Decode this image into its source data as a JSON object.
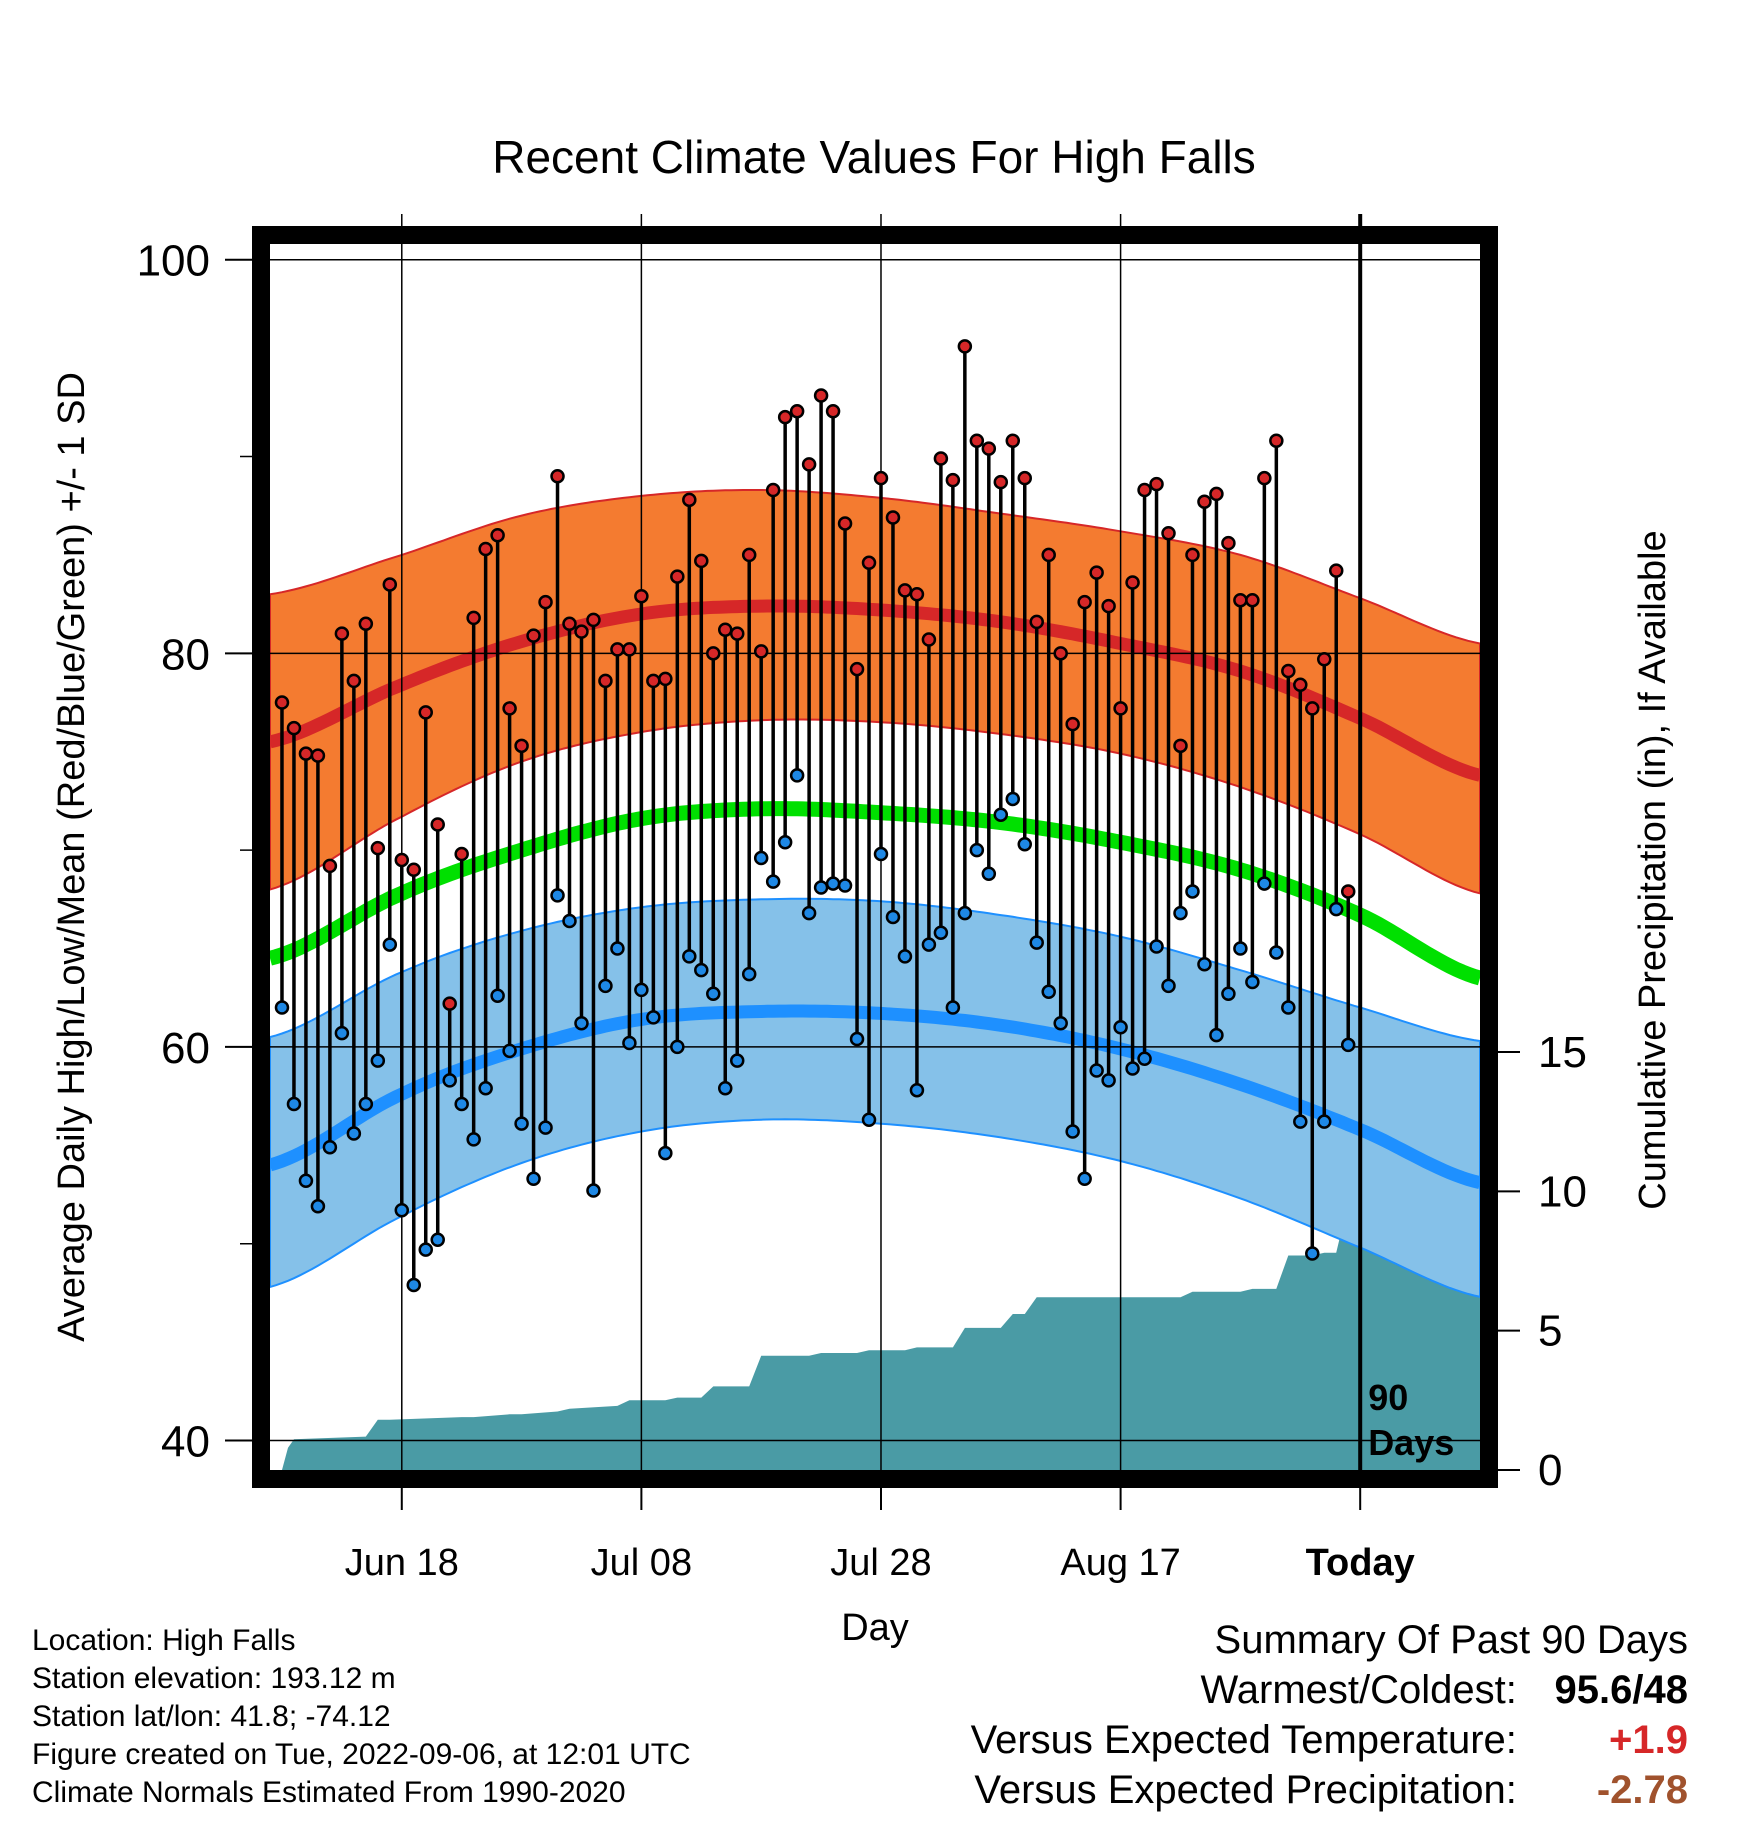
{
  "title": "Recent Climate Values For High Falls",
  "left_axis_label": "Average Daily High/Low/Mean (Red/Blue/Green) +/- 1 SD",
  "right_axis_label": "Cumulative Precipitation (in), If Available",
  "x_axis_label": "Day",
  "ninety_days_label": [
    "90",
    "Days"
  ],
  "meta": {
    "location": "Location: High Falls",
    "elevation": "Station elevation: 193.12 m",
    "latlon": "Station lat/lon: 41.8; -74.12",
    "created": "Figure created on Tue, 2022-09-06, at 12:01 UTC",
    "normals": "Climate Normals Estimated From 1990-2020"
  },
  "summary": {
    "heading": "Summary Of Past 90 Days",
    "warmest_label": "Warmest/Coldest:",
    "warmest_value": "95.6/48",
    "temp_label": "Versus Expected Temperature:",
    "temp_value": "+1.9",
    "precip_label": "Versus Expected Precipitation:",
    "precip_value": "-2.78"
  },
  "colors": {
    "high_band": "#f47b30",
    "high_mean": "#d62728",
    "low_band": "#85c1e9",
    "low_mean": "#1e90ff",
    "mean_line": "#00e000",
    "precip": "#4a9ba5",
    "high_marker": "#d62728",
    "low_marker": "#1e88e5"
  },
  "chart_data": {
    "type": "line",
    "x_tick_labels": [
      "Jun 18",
      "Jul 08",
      "Jul 28",
      "Aug 17",
      "Today"
    ],
    "x_tick_days": [
      10,
      30,
      50,
      70,
      90
    ],
    "left_ticks": [
      40,
      60,
      80,
      100
    ],
    "right_ticks": [
      0,
      5,
      10,
      15
    ],
    "left_ylim": [
      38.5,
      100.8
    ],
    "right_ylim": [
      0,
      44
    ],
    "xlim": [
      -1,
      100
    ],
    "normals": {
      "days": [
        -1,
        10,
        20,
        30,
        40,
        50,
        60,
        70,
        80,
        90,
        100
      ],
      "high_upper": [
        83.0,
        85.0,
        87.0,
        88.0,
        88.3,
        87.9,
        87.1,
        86.2,
        85.0,
        82.8,
        80.5
      ],
      "high_mean": [
        75.5,
        78.4,
        80.6,
        82.0,
        82.4,
        82.2,
        81.6,
        80.5,
        79.1,
        76.7,
        73.8
      ],
      "high_lower": [
        68.0,
        71.7,
        74.5,
        76.0,
        76.6,
        76.5,
        75.9,
        74.9,
        73.2,
        70.8,
        67.8
      ],
      "mean": [
        64.5,
        67.8,
        70.0,
        71.6,
        72.1,
        71.9,
        71.4,
        70.4,
        69.0,
        66.7,
        63.5
      ],
      "low_upper": [
        60.5,
        63.8,
        65.9,
        67.1,
        67.5,
        67.4,
        66.7,
        65.6,
        63.9,
        62.0,
        60.3
      ],
      "low_mean": [
        54.0,
        57.6,
        59.9,
        61.4,
        61.8,
        61.7,
        61.1,
        59.9,
        58.1,
        55.8,
        53.1
      ],
      "low_lower": [
        47.8,
        51.4,
        54.1,
        55.7,
        56.3,
        56.1,
        55.4,
        54.2,
        52.3,
        49.8,
        47.3
      ]
    },
    "daily": [
      {
        "day": 0,
        "high": 77.5,
        "low": 62.0
      },
      {
        "day": 1,
        "high": 76.2,
        "low": 57.1
      },
      {
        "day": 2,
        "high": 74.9,
        "low": 53.2
      },
      {
        "day": 3,
        "high": 74.8,
        "low": 51.9
      },
      {
        "day": 4,
        "high": 69.2,
        "low": 54.9
      },
      {
        "day": 5,
        "high": 81.0,
        "low": 60.7
      },
      {
        "day": 6,
        "high": 78.6,
        "low": 55.6
      },
      {
        "day": 7,
        "high": 81.5,
        "low": 57.1
      },
      {
        "day": 8,
        "high": 70.1,
        "low": 59.3
      },
      {
        "day": 9,
        "high": 83.5,
        "low": 65.2
      },
      {
        "day": 10,
        "high": 69.5,
        "low": 51.7
      },
      {
        "day": 11,
        "high": 69.0,
        "low": 47.9
      },
      {
        "day": 12,
        "high": 77.0,
        "low": 49.7
      },
      {
        "day": 13,
        "high": 71.3,
        "low": 50.2
      },
      {
        "day": 14,
        "high": 62.2,
        "low": 58.3
      },
      {
        "day": 15,
        "high": 69.8,
        "low": 57.1
      },
      {
        "day": 16,
        "high": 81.8,
        "low": 55.3
      },
      {
        "day": 17,
        "high": 85.3,
        "low": 57.9
      },
      {
        "day": 18,
        "high": 86.0,
        "low": 62.6
      },
      {
        "day": 19,
        "high": 77.2,
        "low": 59.8
      },
      {
        "day": 20,
        "high": 75.3,
        "low": 56.1
      },
      {
        "day": 21,
        "high": 80.9,
        "low": 53.3
      },
      {
        "day": 22,
        "high": 82.6,
        "low": 55.9
      },
      {
        "day": 23,
        "high": 89.0,
        "low": 67.7
      },
      {
        "day": 24,
        "high": 81.5,
        "low": 66.4
      },
      {
        "day": 25,
        "high": 81.1,
        "low": 61.2
      },
      {
        "day": 26,
        "high": 81.7,
        "low": 52.7
      },
      {
        "day": 27,
        "high": 78.6,
        "low": 63.1
      },
      {
        "day": 28,
        "high": 80.2,
        "low": 65.0
      },
      {
        "day": 29,
        "high": 80.2,
        "low": 60.2
      },
      {
        "day": 30,
        "high": 82.9,
        "low": 62.9
      },
      {
        "day": 31,
        "high": 78.6,
        "low": 61.5
      },
      {
        "day": 32,
        "high": 78.7,
        "low": 54.6
      },
      {
        "day": 33,
        "high": 83.9,
        "low": 60.0
      },
      {
        "day": 34,
        "high": 87.8,
        "low": 64.6
      },
      {
        "day": 35,
        "high": 84.7,
        "low": 63.9
      },
      {
        "day": 36,
        "high": 80.0,
        "low": 62.7
      },
      {
        "day": 37,
        "high": 81.2,
        "low": 57.9
      },
      {
        "day": 38,
        "high": 81.0,
        "low": 59.3
      },
      {
        "day": 39,
        "high": 85.0,
        "low": 63.7
      },
      {
        "day": 40,
        "high": 80.1,
        "low": 69.6
      },
      {
        "day": 41,
        "high": 88.3,
        "low": 68.4
      },
      {
        "day": 42,
        "high": 92.0,
        "low": 70.4
      },
      {
        "day": 43,
        "high": 92.3,
        "low": 73.8
      },
      {
        "day": 44,
        "high": 89.6,
        "low": 66.8
      },
      {
        "day": 45,
        "high": 93.1,
        "low": 68.1
      },
      {
        "day": 46,
        "high": 92.3,
        "low": 68.3
      },
      {
        "day": 47,
        "high": 86.6,
        "low": 68.2
      },
      {
        "day": 48,
        "high": 79.2,
        "low": 60.4
      },
      {
        "day": 49,
        "high": 84.6,
        "low": 56.3
      },
      {
        "day": 50,
        "high": 88.9,
        "low": 69.8
      },
      {
        "day": 51,
        "high": 86.9,
        "low": 66.6
      },
      {
        "day": 52,
        "high": 83.2,
        "low": 64.6
      },
      {
        "day": 53,
        "high": 83.0,
        "low": 57.8
      },
      {
        "day": 54,
        "high": 80.7,
        "low": 65.2
      },
      {
        "day": 55,
        "high": 89.9,
        "low": 65.8
      },
      {
        "day": 56,
        "high": 88.8,
        "low": 62.0
      },
      {
        "day": 57,
        "high": 95.6,
        "low": 66.8
      },
      {
        "day": 58,
        "high": 90.8,
        "low": 70.0
      },
      {
        "day": 59,
        "high": 90.4,
        "low": 68.8
      },
      {
        "day": 60,
        "high": 88.7,
        "low": 71.8
      },
      {
        "day": 61,
        "high": 90.8,
        "low": 72.6
      },
      {
        "day": 62,
        "high": 88.9,
        "low": 70.3
      },
      {
        "day": 63,
        "high": 81.6,
        "low": 65.3
      },
      {
        "day": 64,
        "high": 85.0,
        "low": 62.8
      },
      {
        "day": 65,
        "high": 80.0,
        "low": 61.2
      },
      {
        "day": 66,
        "high": 76.4,
        "low": 55.7
      },
      {
        "day": 67,
        "high": 82.6,
        "low": 53.3
      },
      {
        "day": 68,
        "high": 84.1,
        "low": 58.8
      },
      {
        "day": 69,
        "high": 82.4,
        "low": 58.3
      },
      {
        "day": 70,
        "high": 77.2,
        "low": 61.0
      },
      {
        "day": 71,
        "high": 83.6,
        "low": 58.9
      },
      {
        "day": 72,
        "high": 88.3,
        "low": 59.4
      },
      {
        "day": 73,
        "high": 88.6,
        "low": 65.1
      },
      {
        "day": 74,
        "high": 86.1,
        "low": 63.1
      },
      {
        "day": 75,
        "high": 75.3,
        "low": 66.8
      },
      {
        "day": 76,
        "high": 85.0,
        "low": 67.9
      },
      {
        "day": 77,
        "high": 87.7,
        "low": 64.2
      },
      {
        "day": 78,
        "high": 88.1,
        "low": 60.6
      },
      {
        "day": 79,
        "high": 85.6,
        "low": 62.7
      },
      {
        "day": 80,
        "high": 82.7,
        "low": 65.0
      },
      {
        "day": 81,
        "high": 82.7,
        "low": 63.3
      },
      {
        "day": 82,
        "high": 88.9,
        "low": 68.3
      },
      {
        "day": 83,
        "high": 90.8,
        "low": 64.8
      },
      {
        "day": 84,
        "high": 79.1,
        "low": 62.0
      },
      {
        "day": 85,
        "high": 78.4,
        "low": 56.2
      },
      {
        "day": 86,
        "high": 77.2,
        "low": 49.5
      },
      {
        "day": 87,
        "high": 79.7,
        "low": 56.2
      },
      {
        "day": 88,
        "high": 84.2,
        "low": 67.0
      },
      {
        "day": 89,
        "high": 67.9,
        "low": 60.1
      }
    ],
    "precip": {
      "days": [
        0,
        0.5,
        1,
        7,
        8,
        9,
        15,
        16,
        19,
        20,
        23,
        24,
        28,
        29,
        32,
        33,
        35,
        36,
        39,
        40,
        44,
        45,
        48,
        49,
        52,
        53,
        56,
        57,
        60,
        61,
        62,
        63,
        70,
        71,
        75,
        76,
        80,
        81,
        83,
        84,
        86,
        87,
        88,
        89,
        100
      ],
      "values": [
        0,
        0.8,
        1.1,
        1.2,
        1.8,
        1.8,
        1.9,
        1.9,
        2.0,
        2.0,
        2.1,
        2.2,
        2.3,
        2.5,
        2.5,
        2.6,
        2.6,
        3.0,
        3.0,
        4.1,
        4.1,
        4.2,
        4.2,
        4.3,
        4.3,
        4.4,
        4.4,
        5.1,
        5.1,
        5.6,
        5.6,
        6.2,
        6.2,
        6.2,
        6.2,
        6.4,
        6.4,
        6.5,
        6.5,
        7.7,
        7.7,
        7.8,
        7.8,
        9.6,
        9.6
      ]
    }
  }
}
